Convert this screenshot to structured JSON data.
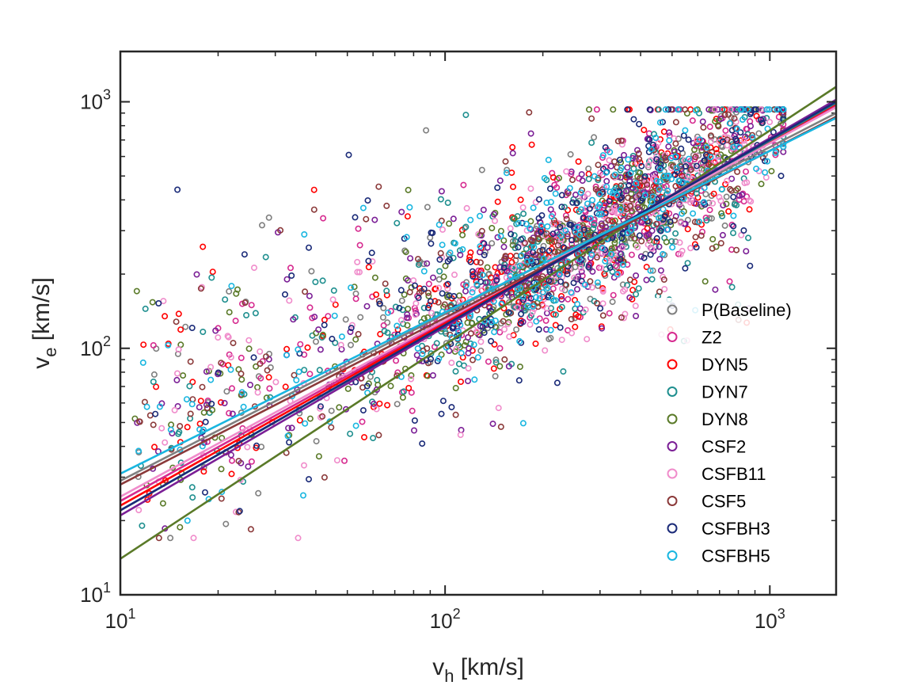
{
  "chart_data": {
    "type": "scatter",
    "title": "",
    "xlabel": {
      "main": "v",
      "sub": "h",
      "unit": " [km/s]"
    },
    "ylabel": {
      "main": "v",
      "sub": "e",
      "unit": " [km/s]"
    },
    "xscale": "log",
    "yscale": "log",
    "xlim": [
      10,
      1600
    ],
    "ylim": [
      10,
      1600
    ],
    "x_ticks": [
      {
        "value": 10,
        "base": "10",
        "exp": "1"
      },
      {
        "value": 100,
        "base": "10",
        "exp": "2"
      },
      {
        "value": 1000,
        "base": "10",
        "exp": "3"
      }
    ],
    "y_ticks": [
      {
        "value": 10,
        "base": "10",
        "exp": "1"
      },
      {
        "value": 100,
        "base": "10",
        "exp": "2"
      },
      {
        "value": 1000,
        "base": "10",
        "exp": "3"
      }
    ],
    "legend_position": "bottom-right",
    "marker": "circle-open",
    "cloud": {
      "points_per_series": 260,
      "core_trend": {
        "x_center": 300,
        "y_center": 300,
        "slope": 0.8
      },
      "outer_x_range": [
        11,
        1100
      ],
      "outer_y_range": [
        17,
        930
      ]
    },
    "series": [
      {
        "name": "P(Baseline)",
        "color": "#7f7f7f",
        "fit": {
          "y_at_10": 29,
          "y_at_1600": 900
        }
      },
      {
        "name": "Z2",
        "color": "#d62a8f",
        "fit": {
          "y_at_10": 24,
          "y_at_1600": 960
        }
      },
      {
        "name": "DYN5",
        "color": "#ff0000",
        "fit": {
          "y_at_10": 23,
          "y_at_1600": 980
        }
      },
      {
        "name": "DYN7",
        "color": "#1f8f8f",
        "fit": {
          "y_at_10": 22,
          "y_at_1600": 990
        }
      },
      {
        "name": "DYN8",
        "color": "#5a7a28",
        "fit": {
          "y_at_10": 14,
          "y_at_1600": 1150
        }
      },
      {
        "name": "CSF2",
        "color": "#7b1f96",
        "fit": {
          "y_at_10": 21,
          "y_at_1600": 1020
        }
      },
      {
        "name": "CSFB11",
        "color": "#f08ccb",
        "fit": {
          "y_at_10": 25,
          "y_at_1600": 950
        }
      },
      {
        "name": "CSF5",
        "color": "#8b3a3a",
        "fit": {
          "y_at_10": 28,
          "y_at_1600": 870
        }
      },
      {
        "name": "CSFBH3",
        "color": "#1a2a78",
        "fit": {
          "y_at_10": 22,
          "y_at_1600": 1000
        }
      },
      {
        "name": "CSFBH5",
        "color": "#19b6e0",
        "fit": {
          "y_at_10": 31,
          "y_at_1600": 860
        }
      }
    ]
  }
}
